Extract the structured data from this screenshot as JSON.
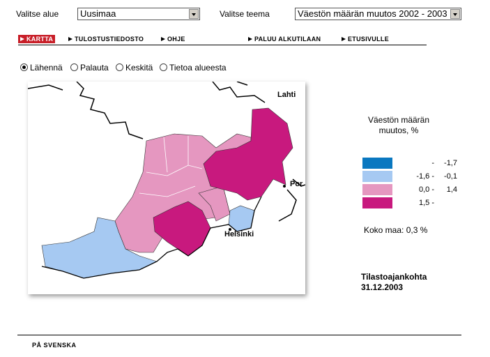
{
  "controls": {
    "area_label": "Valitse alue",
    "area_value": "Uusimaa",
    "theme_label": "Valitse teema",
    "theme_value": "Väestön määrän muutos 2002 - 2003"
  },
  "nav": [
    "KARTTA",
    "TULOSTUSTIEDOSTO",
    "OHJE",
    "PALUU ALKUTILAAN",
    "ETUSIVULLE"
  ],
  "tools": [
    "Lähennä",
    "Palauta",
    "Keskitä",
    "Tietoa alueesta"
  ],
  "map_labels": [
    "Lahti",
    "Por",
    "Helsinki"
  ],
  "legend": {
    "title": "Väestön määrän muutos, %",
    "rows": [
      {
        "color": "#0a78c0",
        "from": "-",
        "to": "-1,7"
      },
      {
        "color": "#a6c9f2",
        "from": "-1,6 -",
        "to": "-0,1"
      },
      {
        "color": "#e597c0",
        "from": "0,0 -",
        "to": "1,4"
      },
      {
        "color": "#c8197e",
        "from": "1,5 -",
        "to": ""
      }
    ]
  },
  "total": "Koko maa: 0,3 %",
  "date": {
    "label": "Tilastoajankohta",
    "value": "31.12.2003"
  },
  "footer": "PÅ SVENSKA"
}
